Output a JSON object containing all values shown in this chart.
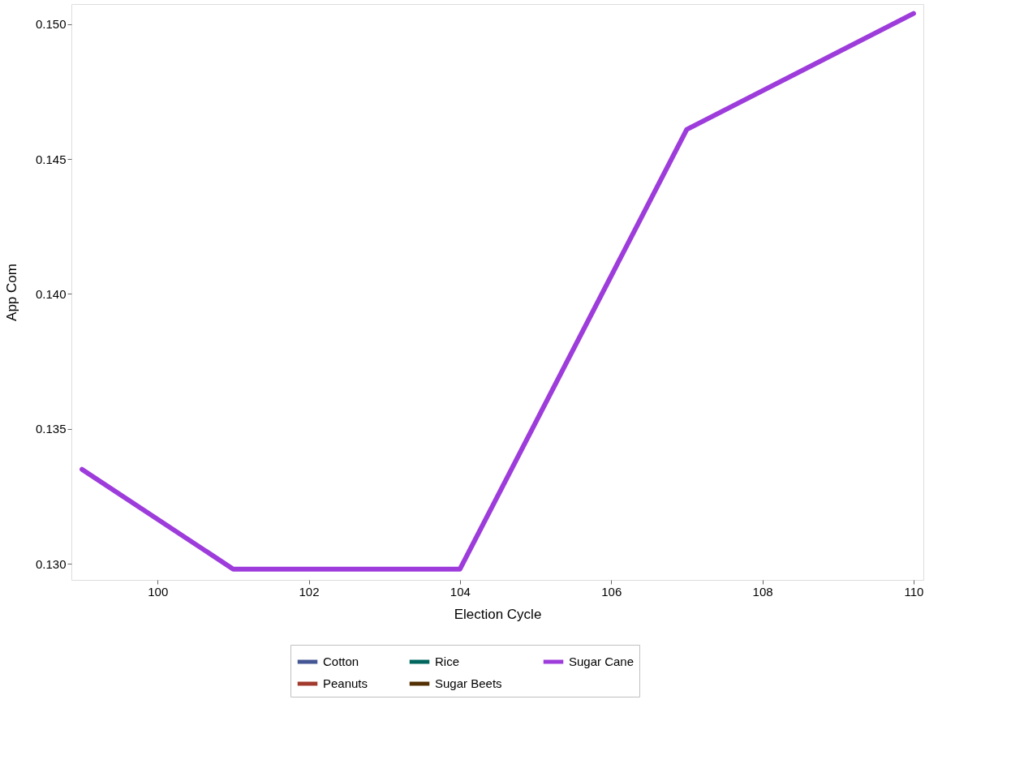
{
  "chart_data": {
    "type": "line",
    "xlabel": "Election Cycle",
    "ylabel": "App Com",
    "x": [
      99,
      101,
      104,
      107,
      110
    ],
    "series": [
      {
        "name": "Cotton",
        "color": "#445694",
        "values": [
          null,
          null,
          null,
          null,
          null
        ]
      },
      {
        "name": "Peanuts",
        "color": "#a23a2e",
        "values": [
          null,
          null,
          null,
          null,
          null
        ]
      },
      {
        "name": "Rice",
        "color": "#01665e",
        "values": [
          null,
          null,
          null,
          null,
          null
        ]
      },
      {
        "name": "Sugar Beets",
        "color": "#543005",
        "values": [
          null,
          null,
          null,
          null,
          null
        ]
      },
      {
        "name": "Sugar Cane",
        "color": "#9d3cdb",
        "values": [
          0.1335,
          0.1298,
          0.1298,
          0.1461,
          0.1504
        ]
      }
    ],
    "xlim": [
      98.86,
      110.13
    ],
    "xticks": [
      100,
      102,
      104,
      106,
      108,
      110
    ],
    "ylim": [
      0.1294,
      0.15075
    ],
    "yticks": [
      {
        "value": 0.13,
        "label": "0.130"
      },
      0.135,
      {
        "value": 0.14,
        "label": "0.140"
      },
      0.145,
      {
        "value": 0.15,
        "label": "0.150"
      }
    ],
    "grid": false,
    "legend": "bottom",
    "marker": "none",
    "line_style": "solid"
  }
}
